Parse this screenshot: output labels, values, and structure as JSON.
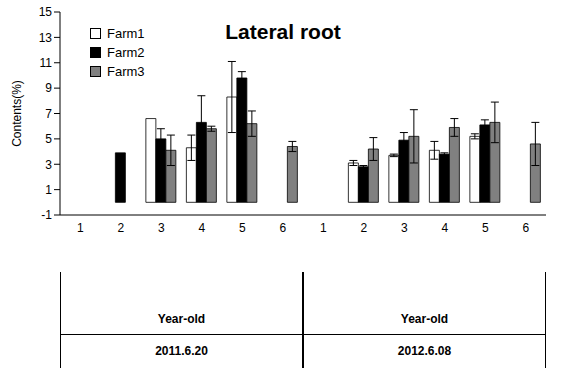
{
  "chart_data": {
    "type": "bar",
    "title": "Lateral root",
    "y_label": "Contents(%)",
    "groups": [
      {
        "name": "2011.6.20",
        "label": "Year-old",
        "categories": [
          "1",
          "2",
          "3",
          "4",
          "5",
          "6"
        ]
      },
      {
        "name": "2012.6.08",
        "label": "Year-old",
        "categories": [
          "1",
          "2",
          "3",
          "4",
          "5",
          "6"
        ]
      }
    ],
    "series": [
      {
        "name": "Farm1",
        "color": "#ffffff",
        "values": [
          null,
          null,
          6.6,
          4.3,
          8.3,
          null,
          null,
          3.1,
          3.7,
          4.1,
          5.2,
          null
        ],
        "errors": [
          null,
          null,
          null,
          1.0,
          2.8,
          null,
          null,
          0.2,
          0.1,
          0.7,
          0.2,
          null
        ]
      },
      {
        "name": "Farm2",
        "color": "#000000",
        "values": [
          null,
          3.9,
          5.0,
          6.3,
          9.8,
          null,
          null,
          2.8,
          4.9,
          3.8,
          6.1,
          null
        ],
        "errors": [
          null,
          null,
          0.8,
          2.1,
          0.5,
          null,
          null,
          0.1,
          0.6,
          0.1,
          0.4,
          null
        ]
      },
      {
        "name": "Farm3",
        "color": "#808080",
        "values": [
          null,
          null,
          4.1,
          5.8,
          6.2,
          4.4,
          null,
          4.2,
          5.2,
          5.9,
          6.3,
          4.6
        ],
        "errors": [
          null,
          null,
          1.2,
          0.2,
          1.0,
          0.4,
          null,
          0.9,
          2.1,
          0.7,
          1.6,
          1.7
        ]
      }
    ],
    "ylim": [
      -1,
      15
    ],
    "yticks": [
      -1,
      1,
      3,
      5,
      7,
      9,
      11,
      13,
      15
    ],
    "legend": "upper left",
    "grid": false
  }
}
